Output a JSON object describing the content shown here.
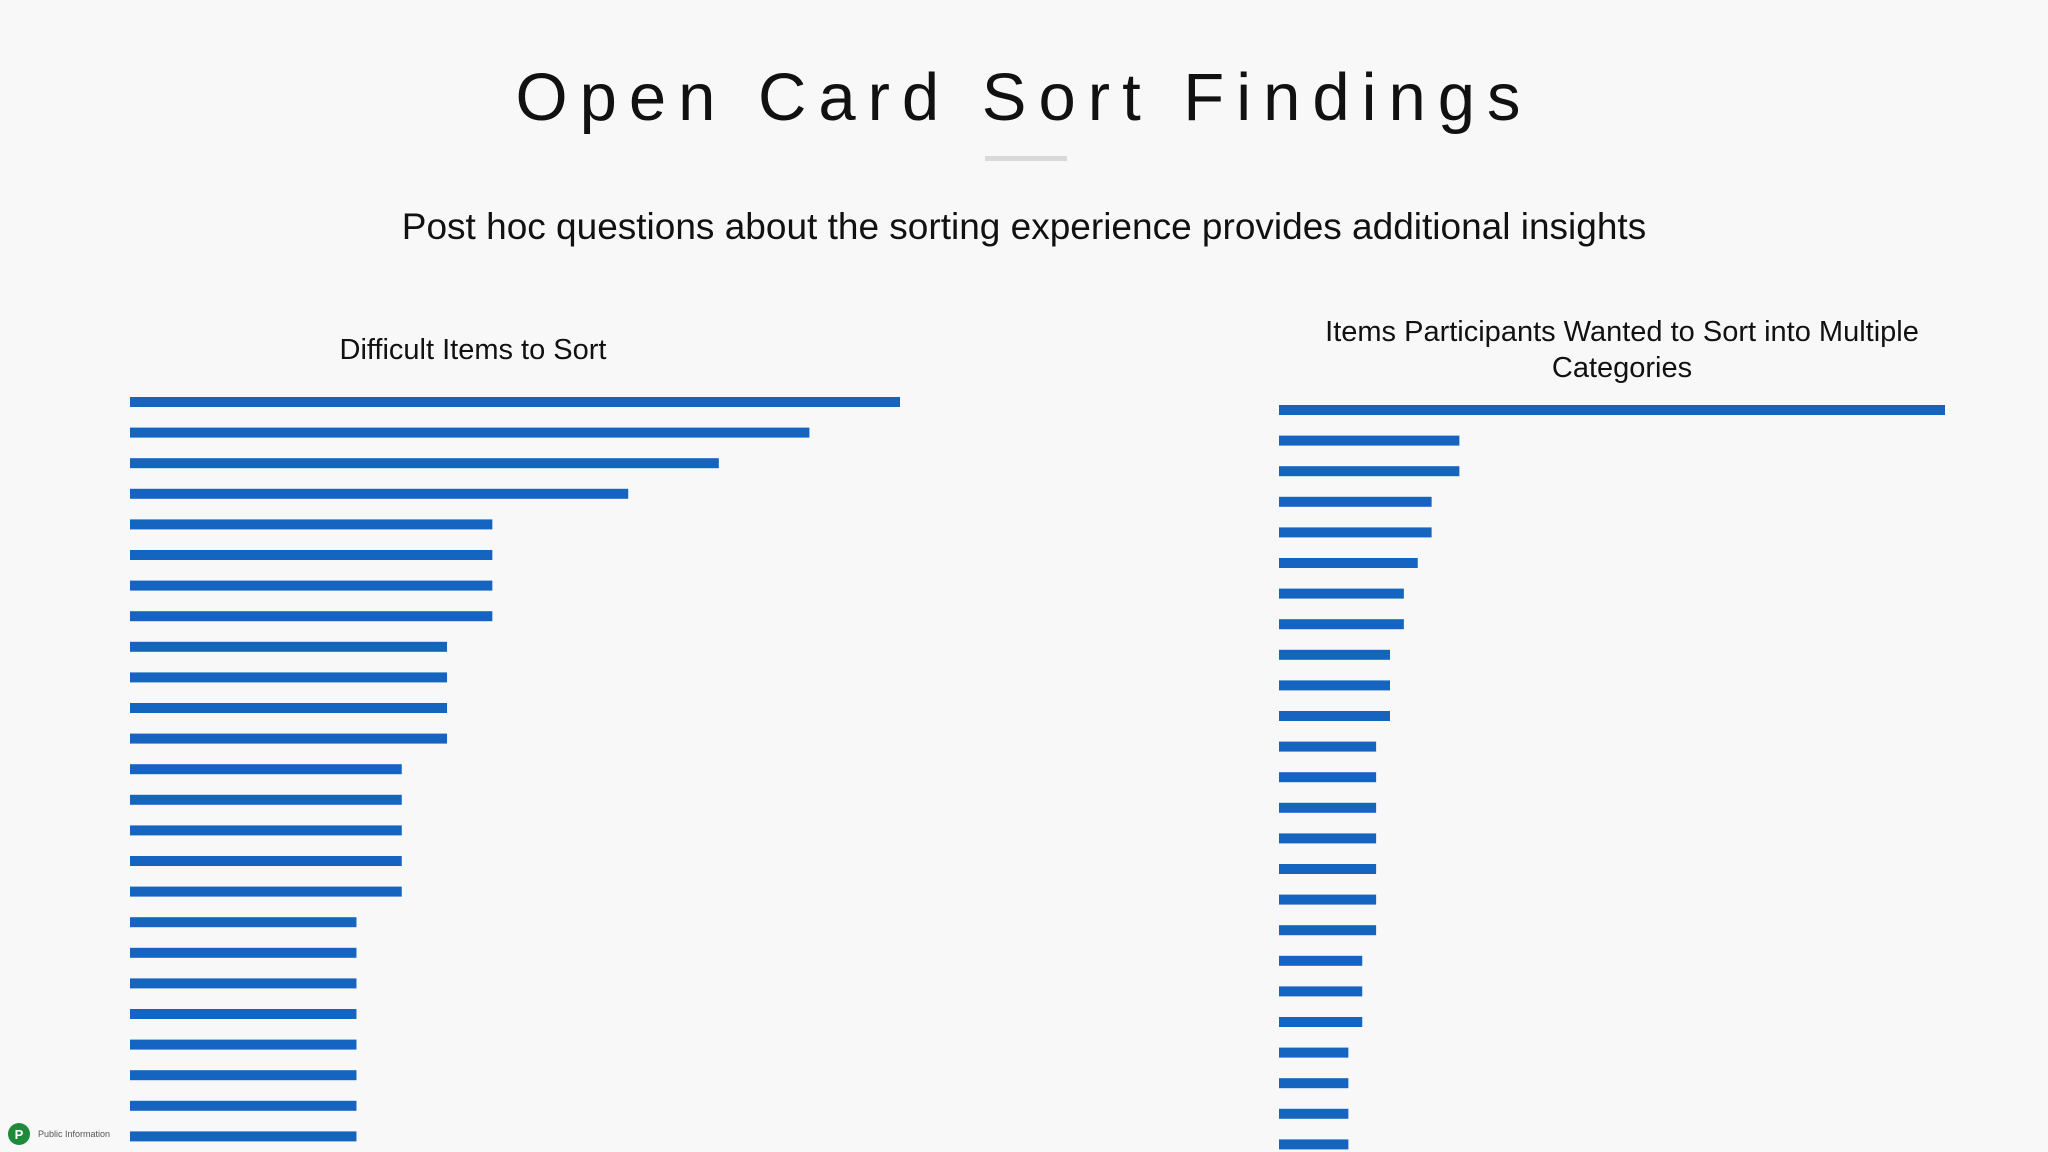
{
  "slide": {
    "title": "Open Card Sort Findings",
    "subtitle": "Post hoc questions about the sorting experience provides additional insights"
  },
  "footer": {
    "logo_letter": "P",
    "label": "Public Information"
  },
  "colors": {
    "bar": "#1565c0",
    "background": "#f8f8f9",
    "title_rule": "#d9d9d9"
  },
  "chart_data": [
    {
      "type": "bar",
      "orientation": "horizontal",
      "title": "Difficult Items to Sort",
      "xlabel": "",
      "ylabel": "",
      "xlim": [
        0,
        17
      ],
      "grid": false,
      "values": [
        17,
        15,
        13,
        11,
        8,
        8,
        8,
        8,
        7,
        7,
        7,
        7,
        6,
        6,
        6,
        6,
        6,
        5,
        5,
        5,
        5,
        5,
        5,
        5,
        5
      ]
    },
    {
      "type": "bar",
      "orientation": "horizontal",
      "title": "Items Participants Wanted to Sort into Multiple Categories",
      "xlabel": "",
      "ylabel": "",
      "xlim": [
        0,
        24
      ],
      "grid": false,
      "values": [
        24,
        6.5,
        6.5,
        5.5,
        5.5,
        5,
        4.5,
        4.5,
        4,
        4,
        4,
        3.5,
        3.5,
        3.5,
        3.5,
        3.5,
        3.5,
        3.5,
        3,
        3,
        3,
        2.5,
        2.5,
        2.5,
        2.5
      ]
    }
  ]
}
